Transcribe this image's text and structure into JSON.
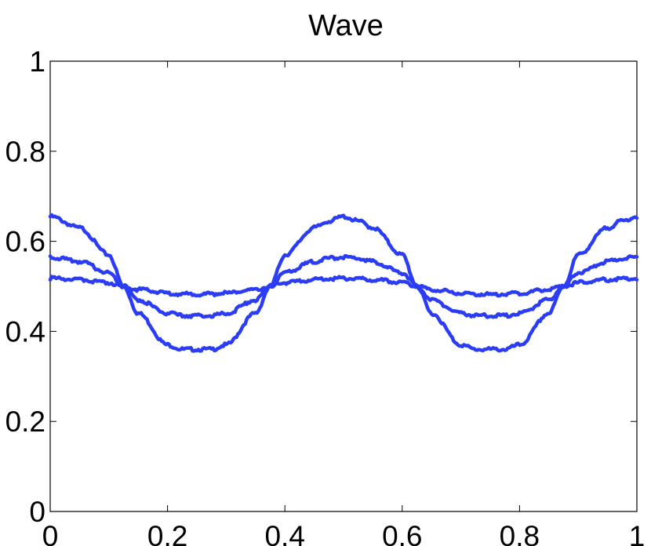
{
  "chart_data": {
    "type": "line",
    "title": "Wave",
    "xlabel": "",
    "ylabel": "",
    "xlim": [
      0,
      1
    ],
    "ylim": [
      0,
      1
    ],
    "xticks": [
      "0",
      "0.2",
      "0.4",
      "0.6",
      "0.8",
      "1"
    ],
    "yticks": [
      "0",
      "0.2",
      "0.4",
      "0.6",
      "0.8",
      "1"
    ],
    "grid": false,
    "line_color": "#2b3cf5",
    "x": [
      0,
      0.05,
      0.1,
      0.125,
      0.15,
      0.2,
      0.225,
      0.25,
      0.275,
      0.3,
      0.35,
      0.375,
      0.4,
      0.45,
      0.475,
      0.5,
      0.525,
      0.55,
      0.6,
      0.625,
      0.65,
      0.7,
      0.725,
      0.75,
      0.775,
      0.8,
      0.85,
      0.875,
      0.9,
      0.95,
      0.975,
      1
    ],
    "series": [
      {
        "values": [
          0.655,
          0.63,
          0.57,
          0.5,
          0.44,
          0.37,
          0.36,
          0.36,
          0.36,
          0.37,
          0.44,
          0.5,
          0.57,
          0.63,
          0.645,
          0.655,
          0.645,
          0.63,
          0.57,
          0.5,
          0.44,
          0.37,
          0.36,
          0.36,
          0.36,
          0.37,
          0.44,
          0.5,
          0.57,
          0.63,
          0.645,
          0.655
        ]
      },
      {
        "values": [
          0.565,
          0.555,
          0.53,
          0.5,
          0.47,
          0.44,
          0.435,
          0.435,
          0.435,
          0.44,
          0.47,
          0.5,
          0.53,
          0.555,
          0.562,
          0.565,
          0.562,
          0.555,
          0.53,
          0.5,
          0.47,
          0.44,
          0.435,
          0.435,
          0.435,
          0.44,
          0.47,
          0.5,
          0.53,
          0.555,
          0.562,
          0.565
        ]
      },
      {
        "values": [
          0.518,
          0.515,
          0.508,
          0.5,
          0.493,
          0.485,
          0.483,
          0.482,
          0.483,
          0.485,
          0.493,
          0.5,
          0.508,
          0.515,
          0.517,
          0.518,
          0.517,
          0.515,
          0.508,
          0.5,
          0.493,
          0.485,
          0.483,
          0.482,
          0.483,
          0.485,
          0.493,
          0.5,
          0.508,
          0.515,
          0.517,
          0.518
        ]
      }
    ]
  }
}
